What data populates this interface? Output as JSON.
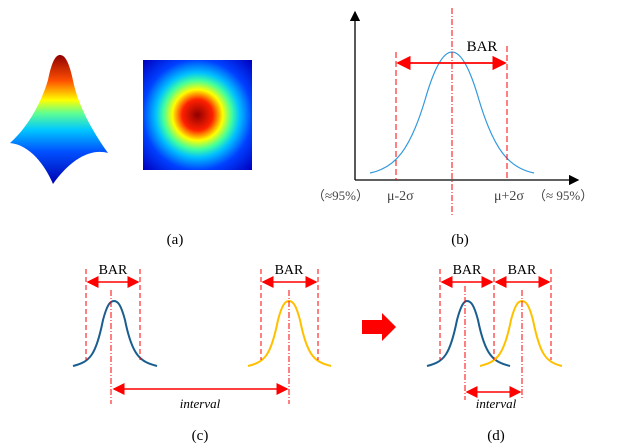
{
  "panels": {
    "a": {
      "label": "(a)"
    },
    "b": {
      "label": "(b)",
      "bar": "BAR",
      "left_pct": "（≈95%）",
      "left_bound": "μ-2σ",
      "right_bound": "μ+2σ",
      "right_pct": "（≈ 95%）"
    },
    "c": {
      "label": "(c)",
      "bar1": "BAR",
      "bar2": "BAR",
      "interval": "interval"
    },
    "d": {
      "label": "(d)",
      "bar1": "BAR",
      "bar2": "BAR",
      "interval": "interval"
    }
  },
  "colors": {
    "red": "#ff0000",
    "blue_curve": "#1a5e8f",
    "yellow_curve": "#ffc000",
    "light_blue": "#3399dd"
  }
}
